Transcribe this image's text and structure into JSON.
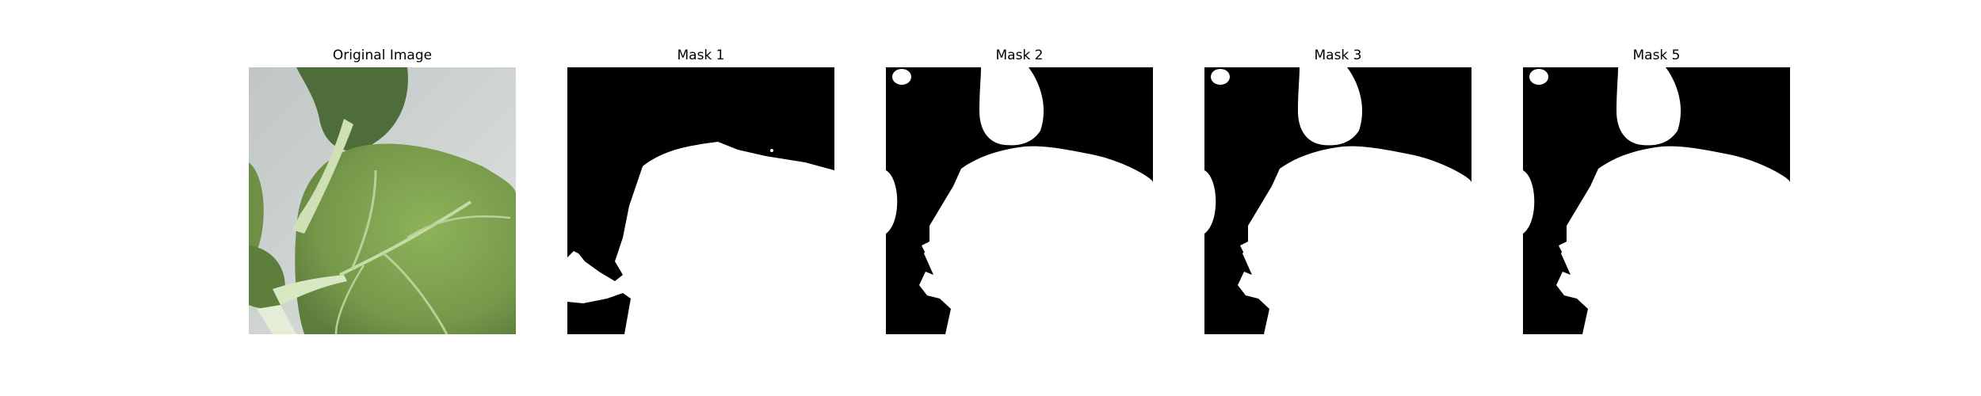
{
  "panels": [
    {
      "title": "Original Image",
      "kind": "photo"
    },
    {
      "title": "Mask 1",
      "kind": "mask"
    },
    {
      "title": "Mask 2",
      "kind": "mask"
    },
    {
      "title": "Mask 3",
      "kind": "mask"
    },
    {
      "title": "Mask 5",
      "kind": "mask"
    }
  ],
  "colors": {
    "background": "#ffffff",
    "mask_foreground": "#ffffff",
    "mask_background": "#000000",
    "leaf_green": "#7fa04a",
    "leaf_dark": "#4f6d3a",
    "stem": "#d7e6bf",
    "wall": "#c9cfcb"
  }
}
